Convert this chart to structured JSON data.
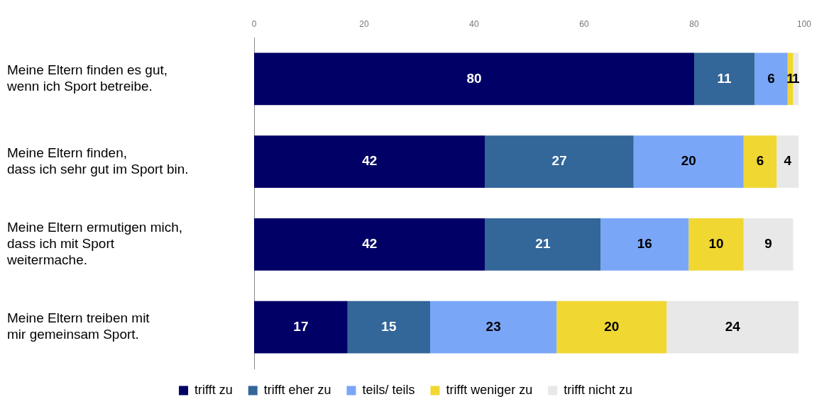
{
  "chart_data": {
    "type": "bar",
    "orientation": "horizontal",
    "stacked": true,
    "categories": [
      "Meine Eltern finden es gut,\nwenn ich Sport betreibe.",
      "Meine Eltern finden,\ndass ich sehr gut im Sport bin.",
      "Meine Eltern ermutigen mich,\ndass ich mit Sport\nweitermache.",
      "Meine Eltern treiben mit\nmir gemeinsam Sport."
    ],
    "series": [
      {
        "name": "trifft zu",
        "color": "#000066",
        "values": [
          80,
          42,
          42,
          17
        ]
      },
      {
        "name": "trifft eher zu",
        "color": "#336699",
        "values": [
          11,
          27,
          21,
          15
        ]
      },
      {
        "name": "teils/ teils",
        "color": "#7aa6f8",
        "values": [
          6,
          20,
          16,
          23
        ]
      },
      {
        "name": "trifft weniger zu",
        "color": "#f0d732",
        "values": [
          1,
          6,
          10,
          20
        ]
      },
      {
        "name": "trifft nicht zu",
        "color": "#e8e8e8",
        "values": [
          1,
          4,
          9,
          24
        ]
      }
    ],
    "xlim": [
      0,
      100
    ],
    "xticks": [
      0,
      20,
      40,
      60,
      80,
      100
    ],
    "grid": false,
    "legend": "bottom",
    "data_labels": true
  }
}
